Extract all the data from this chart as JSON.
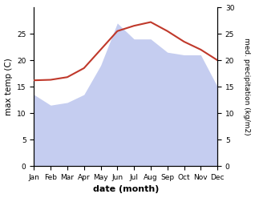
{
  "months": [
    "Jan",
    "Feb",
    "Mar",
    "Apr",
    "May",
    "Jun",
    "Jul",
    "Aug",
    "Sep",
    "Oct",
    "Nov",
    "Dec"
  ],
  "month_indices": [
    1,
    2,
    3,
    4,
    5,
    6,
    7,
    8,
    9,
    10,
    11,
    12
  ],
  "temp_max": [
    16.2,
    16.3,
    16.8,
    18.5,
    22.0,
    25.5,
    26.5,
    27.2,
    25.5,
    23.5,
    22.0,
    20.0
  ],
  "precipitation": [
    13.5,
    11.5,
    12.0,
    13.5,
    19.0,
    27.0,
    24.0,
    24.0,
    21.5,
    21.0,
    21.0,
    15.0
  ],
  "temp_color": "#c0392b",
  "precip_fill_color": "#c5cdf0",
  "temp_ylim": [
    0,
    30
  ],
  "precip_ylim": [
    0,
    30
  ],
  "temp_yticks": [
    0,
    5,
    10,
    15,
    20,
    25
  ],
  "precip_yticks": [
    0,
    5,
    10,
    15,
    20,
    25,
    30
  ],
  "xlabel": "date (month)",
  "ylabel_left": "max temp (C)",
  "ylabel_right": "med. precipitation (kg/m2)",
  "bg_color": "#ffffff",
  "tick_fontsize": 6.5,
  "xlabel_fontsize": 8,
  "ylabel_fontsize": 7.5,
  "ylabel_right_fontsize": 6.5
}
